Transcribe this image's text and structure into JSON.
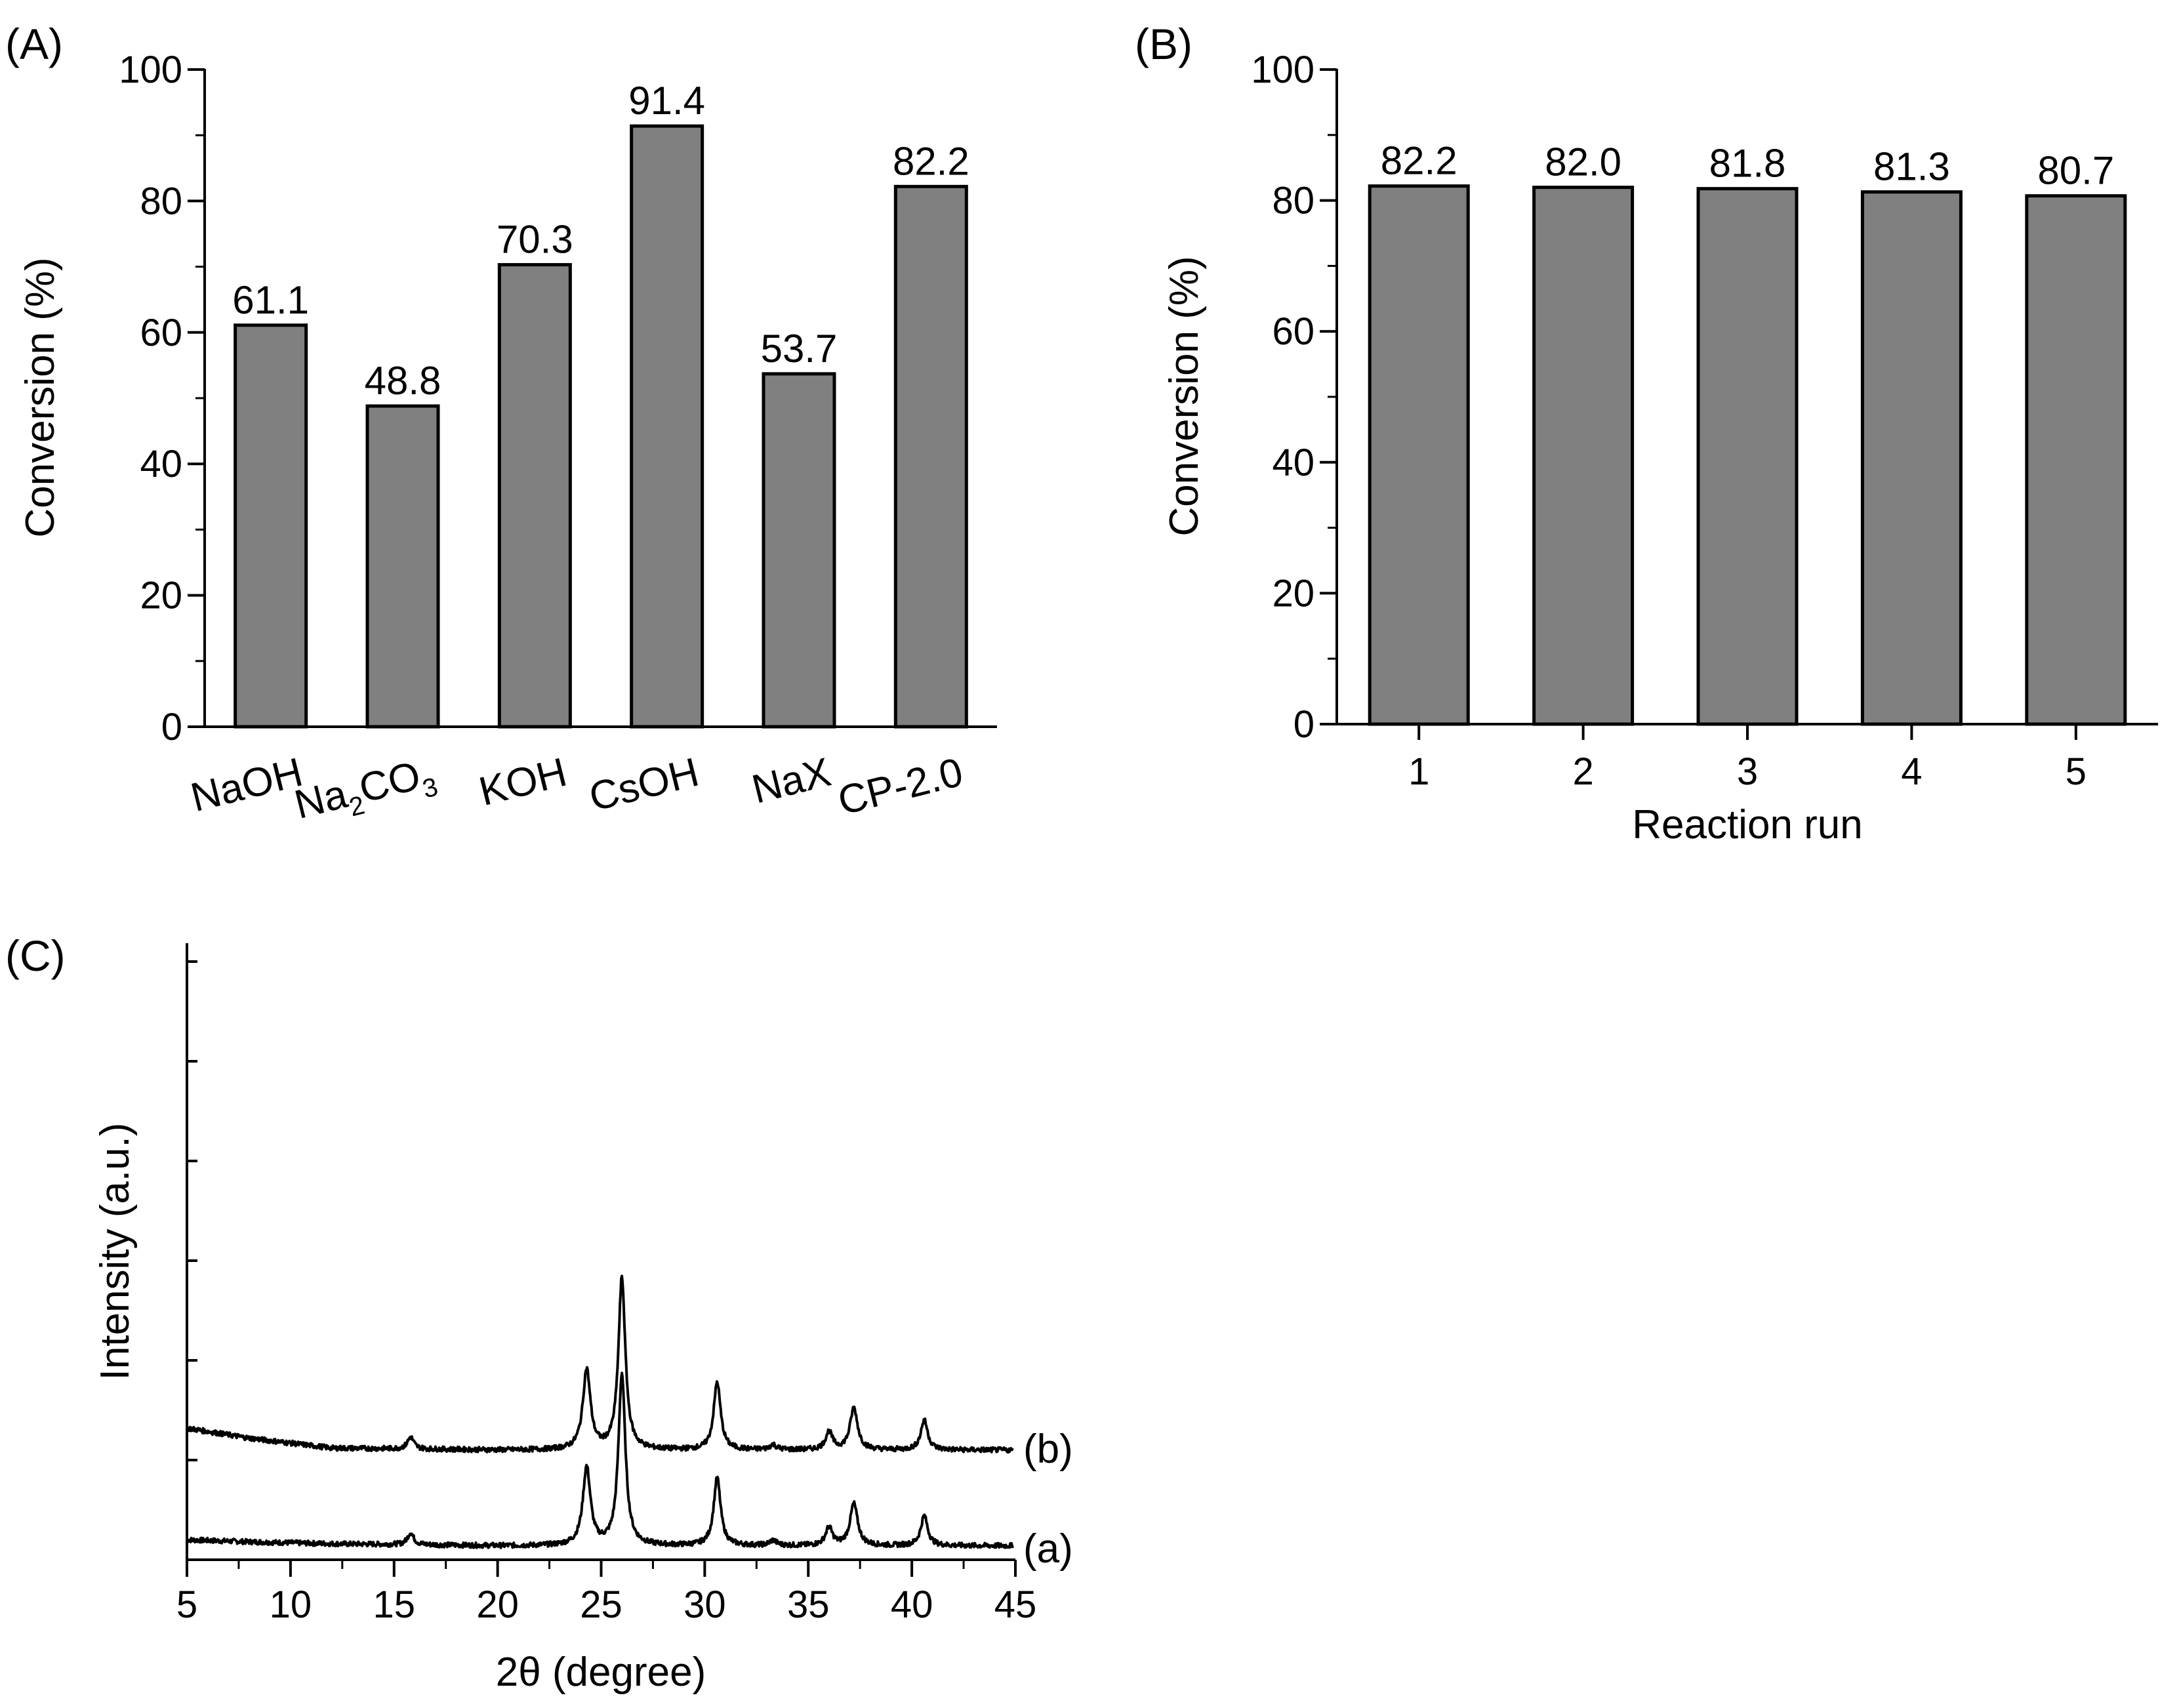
{
  "figure": {
    "panels": [
      "(A)",
      "(B)",
      "(C)"
    ]
  },
  "chart_data": [
    {
      "id": "A",
      "type": "bar",
      "panel_label": "(A)",
      "categories": [
        {
          "main": "NaOH"
        },
        {
          "main": "Na",
          "sub": "2",
          "main2": "CO",
          "sub2": "3"
        },
        {
          "main": "KOH"
        },
        {
          "main": "CsOH"
        },
        {
          "main": "NaX"
        },
        {
          "main": "CP-2.0"
        }
      ],
      "values": [
        61.1,
        48.8,
        70.3,
        91.4,
        53.7,
        82.2
      ],
      "value_labels": [
        "61.1",
        "48.8",
        "70.3",
        "91.4",
        "53.7",
        "82.2"
      ],
      "xlabel": "",
      "ylabel": "Conversion (%)",
      "ylim": [
        0,
        100
      ],
      "yticks": [
        0,
        20,
        40,
        60,
        80,
        100
      ],
      "bar_color": "#808080"
    },
    {
      "id": "B",
      "type": "bar",
      "panel_label": "(B)",
      "categories": [
        "1",
        "2",
        "3",
        "4",
        "5"
      ],
      "values": [
        82.2,
        82.0,
        81.8,
        81.3,
        80.7
      ],
      "value_labels": [
        "82.2",
        "82.0",
        "81.8",
        "81.3",
        "80.7"
      ],
      "xlabel": "Reaction run",
      "ylabel": "Conversion (%)",
      "ylim": [
        0,
        100
      ],
      "yticks": [
        0,
        20,
        40,
        60,
        80,
        100
      ],
      "bar_color": "#808080"
    },
    {
      "id": "C",
      "type": "line",
      "panel_label": "(C)",
      "xlabel": "2θ (degree)",
      "ylabel": "Intensity (a.u.)",
      "xlim": [
        5,
        45
      ],
      "xticks": [
        5,
        10,
        15,
        20,
        25,
        30,
        35,
        40,
        45
      ],
      "series": [
        {
          "name": "(a)",
          "offset": 0,
          "baseline": [
            [
              5,
              20
            ],
            [
              8,
              18
            ],
            [
              12,
              16
            ],
            [
              20,
              14
            ],
            [
              30,
              14
            ],
            [
              45,
              14
            ]
          ],
          "peaks": [
            [
              15.8,
              12,
              0.18
            ],
            [
              24.3,
              78,
              0.22
            ],
            [
              26.0,
              172,
              0.2
            ],
            [
              30.6,
              68,
              0.2
            ],
            [
              33.3,
              5,
              0.2
            ],
            [
              36.0,
              18,
              0.2
            ],
            [
              37.2,
              42,
              0.22
            ],
            [
              40.6,
              30,
              0.2
            ]
          ]
        },
        {
          "name": "(b)",
          "offset": 100,
          "baseline": [
            [
              5,
              32
            ],
            [
              8,
              22
            ],
            [
              12,
              12
            ],
            [
              20,
              10
            ],
            [
              30,
              10
            ],
            [
              45,
              10
            ]
          ],
          "peaks": [
            [
              15.8,
              12,
              0.18
            ],
            [
              24.3,
              80,
              0.22
            ],
            [
              26.0,
              172,
              0.2
            ],
            [
              30.6,
              68,
              0.2
            ],
            [
              33.3,
              5,
              0.2
            ],
            [
              36.0,
              18,
              0.2
            ],
            [
              37.2,
              42,
              0.22
            ],
            [
              40.6,
              30,
              0.2
            ]
          ]
        }
      ]
    }
  ]
}
